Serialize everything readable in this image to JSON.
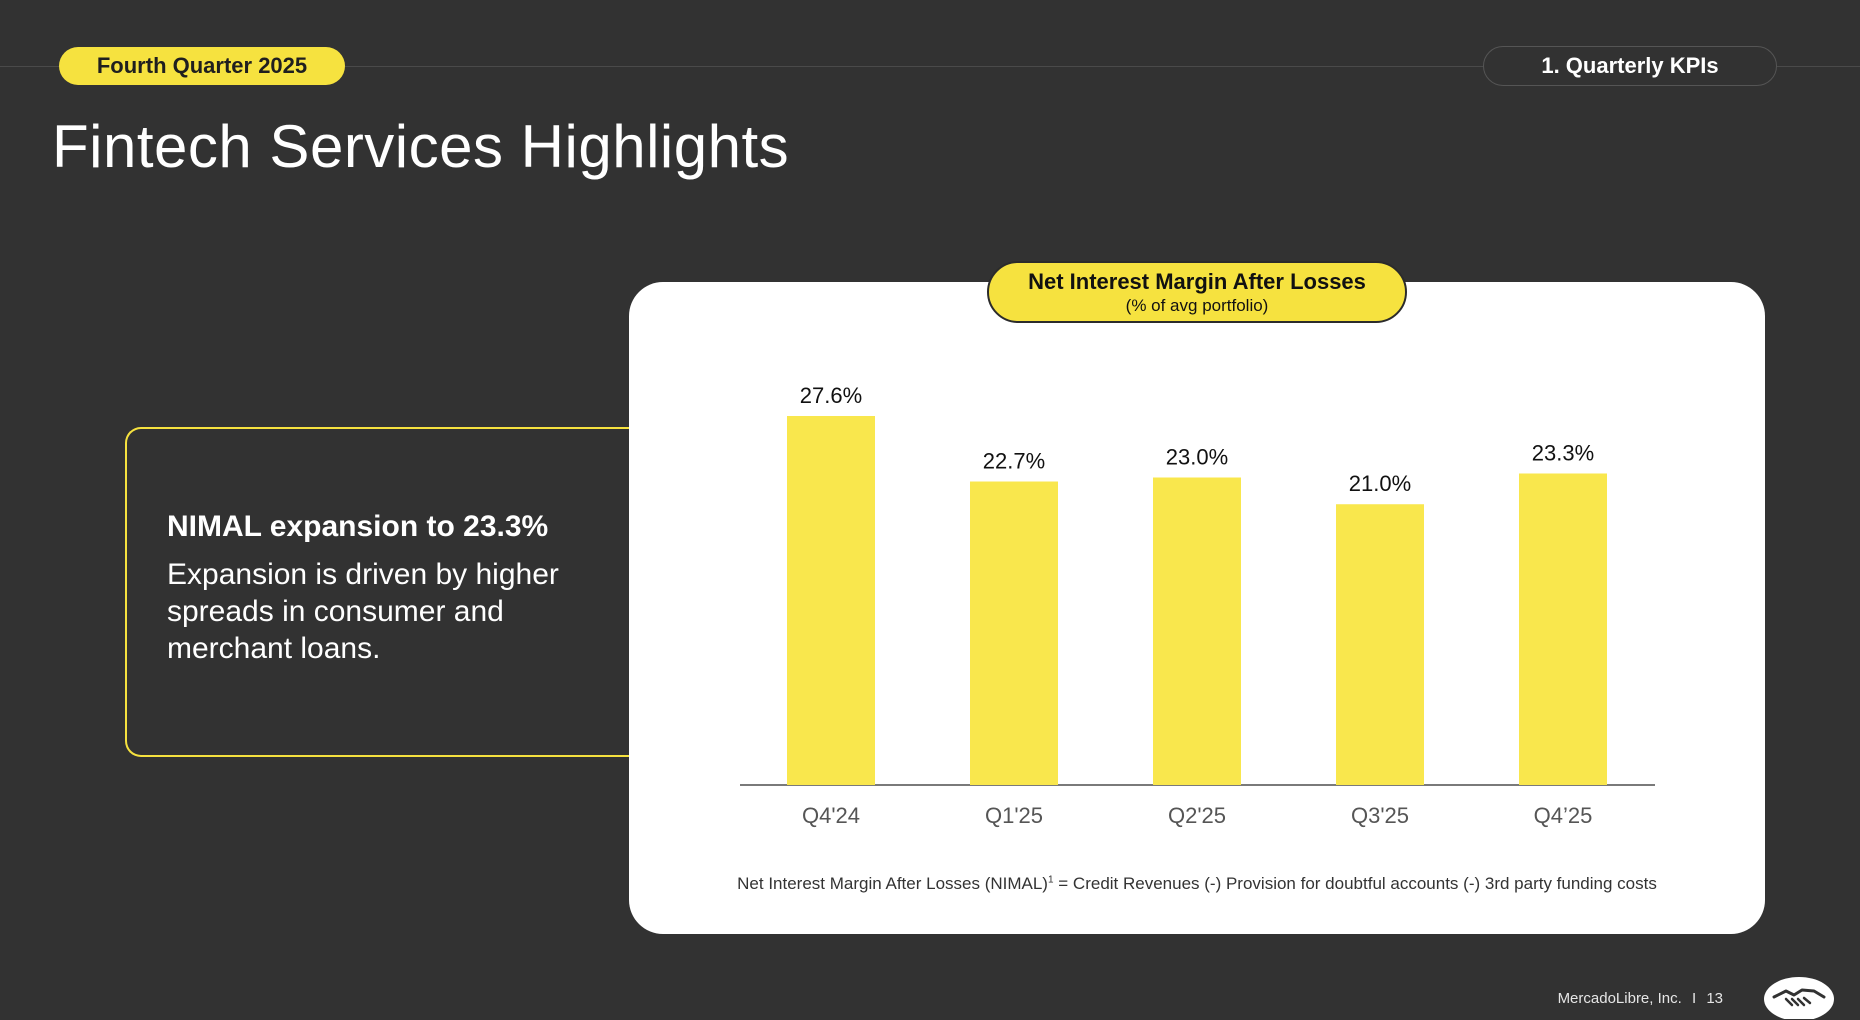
{
  "header": {
    "quarter_pill": "Fourth Quarter 2025",
    "section_pill": "1. Quarterly KPIs",
    "title": "Fintech Services Highlights"
  },
  "callout": {
    "heading": "NIMAL expansion to 23.3%",
    "body": "Expansion is driven by higher spreads in consumer and merchant loans."
  },
  "chart_title": {
    "main": "Net Interest Margin After Losses",
    "sub": "(% of avg portfolio)"
  },
  "footnote": {
    "lhs": "Net Interest Margin After Losses (NIMAL)",
    "sup": "1",
    "rhs": " =  Credit Revenues (-) Provision for doubtful accounts (-) 3rd party funding costs"
  },
  "footer": {
    "company": "MercadoLibre, Inc.",
    "separator": "I",
    "page": "13"
  },
  "colors": {
    "background": "#323232",
    "accent_yellow": "#f6e23f",
    "bar": "#f9e74d",
    "card": "#ffffff"
  },
  "chart_data": {
    "type": "bar",
    "title": "Net Interest Margin After Losses",
    "subtitle": "(% of avg portfolio)",
    "categories": [
      "Q4'24",
      "Q1'25",
      "Q2'25",
      "Q3'25",
      "Q4’25"
    ],
    "values": [
      27.6,
      22.7,
      23.0,
      21.0,
      23.3
    ],
    "labels": [
      "27.6%",
      "22.7%",
      "23.0%",
      "21.0%",
      "23.3%"
    ],
    "xlabel": "",
    "ylabel": "",
    "ylim": [
      0,
      27.6
    ],
    "grid": false,
    "legend": "none",
    "y_axis_visible": false
  }
}
